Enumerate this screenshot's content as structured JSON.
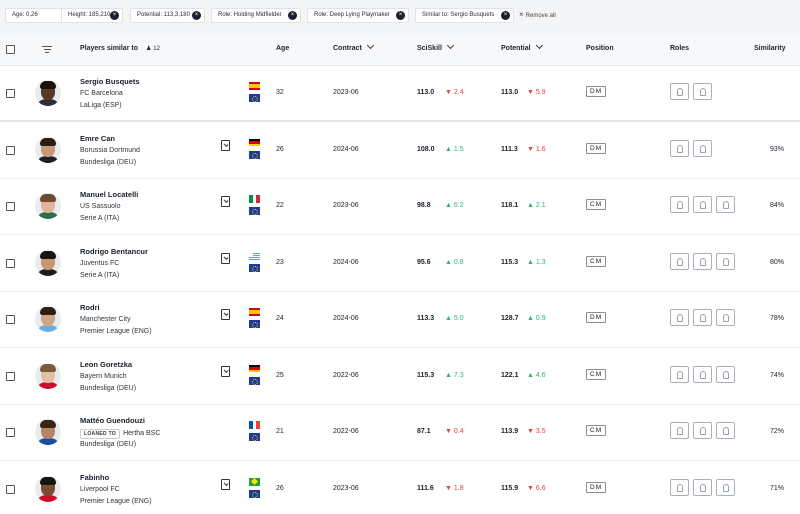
{
  "filters": [
    {
      "label": "Age: 0,26"
    },
    {
      "label": "Height: 185,210"
    },
    {
      "label": "Potential: 113,3,180"
    },
    {
      "label": "Role: Holding Midfielder"
    },
    {
      "label": "Role: Deep Lying Playmaker"
    },
    {
      "label": "Similar to: Sergio Busquets"
    }
  ],
  "remove_all": "Remove all",
  "remove_all_icon": "×",
  "filter_remove_icon": "×",
  "header": {
    "players_label": "Players similar to",
    "players_count": "12",
    "age": "Age",
    "contract": "Contract",
    "sciskill": "SciSkill",
    "potential": "Potential",
    "position": "Position",
    "roles": "Roles",
    "similarity": "Similarity"
  },
  "colors": {
    "up": "#2eb866",
    "down": "#e0453a",
    "eu": "#1d3b9a"
  },
  "players": [
    {
      "name": "Sergio Busquets",
      "club": "FC Barcelona",
      "loan_label": "",
      "league": "LaLiga (ESP)",
      "flag": "spain",
      "age": "32",
      "contract": "2023-06",
      "sciskill": "113.0",
      "sciskill_delta": "2.4",
      "sciskill_trend": "down",
      "potential": "113.0",
      "potential_delta": "5.9",
      "potential_trend": "down",
      "position": "DM",
      "roles": 2,
      "similarity": "",
      "bookmark": false,
      "skin": "#5a3a26",
      "hair": "#1b120d",
      "shirt": "#2b2e3a"
    },
    {
      "name": "Emre Can",
      "club": "Borussia Dortmund",
      "loan_label": "",
      "league": "Bundesliga (DEU)",
      "flag": "germany",
      "age": "26",
      "contract": "2024-06",
      "sciskill": "108.0",
      "sciskill_delta": "1.5",
      "sciskill_trend": "up",
      "potential": "111.3",
      "potential_delta": "1.6",
      "potential_trend": "down",
      "position": "DM",
      "roles": 2,
      "similarity": "93%",
      "bookmark": true,
      "skin": "#c79a7a",
      "hair": "#2a1d15",
      "shirt": "#1e1f24"
    },
    {
      "name": "Manuel Locatelli",
      "club": "US Sassuolo",
      "loan_label": "",
      "league": "Serie A (ITA)",
      "flag": "italy",
      "age": "22",
      "contract": "2023-06",
      "sciskill": "98.8",
      "sciskill_delta": "6.2",
      "sciskill_trend": "up",
      "potential": "118.1",
      "potential_delta": "2.1",
      "potential_trend": "up",
      "position": "CM",
      "roles": 3,
      "similarity": "84%",
      "bookmark": true,
      "skin": "#e0b59a",
      "hair": "#6b4a31",
      "shirt": "#2c6e49"
    },
    {
      "name": "Rodrigo Bentancur",
      "club": "Juventus FC",
      "loan_label": "",
      "league": "Serie A (ITA)",
      "flag": "uruguay",
      "age": "23",
      "contract": "2024-06",
      "sciskill": "95.6",
      "sciskill_delta": "0.8",
      "sciskill_trend": "up",
      "potential": "115.3",
      "potential_delta": "1.3",
      "potential_trend": "up",
      "position": "CM",
      "roles": 3,
      "similarity": "80%",
      "bookmark": true,
      "skin": "#c99573",
      "hair": "#1a1410",
      "shirt": "#1c1c1c"
    },
    {
      "name": "Rodri",
      "club": "Manchester City",
      "loan_label": "",
      "league": "Premier League (ENG)",
      "flag": "spain",
      "age": "24",
      "contract": "2024-06",
      "sciskill": "113.3",
      "sciskill_delta": "5.0",
      "sciskill_trend": "up",
      "potential": "128.7",
      "potential_delta": "0.9",
      "potential_trend": "up",
      "position": "DM",
      "roles": 3,
      "similarity": "78%",
      "bookmark": true,
      "skin": "#d4a486",
      "hair": "#2b1f17",
      "shirt": "#6cabdd"
    },
    {
      "name": "Leon Goretzka",
      "club": "Bayern Munich",
      "loan_label": "",
      "league": "Bundesliga (DEU)",
      "flag": "germany",
      "age": "25",
      "contract": "2022-06",
      "sciskill": "115.3",
      "sciskill_delta": "7.3",
      "sciskill_trend": "up",
      "potential": "122.1",
      "potential_delta": "4.6",
      "potential_trend": "up",
      "position": "CM",
      "roles": 3,
      "similarity": "74%",
      "bookmark": true,
      "skin": "#e6bfa3",
      "hair": "#7a5a3a",
      "shirt": "#c8102e"
    },
    {
      "name": "Mattéo Guendouzi",
      "club": "Hertha BSC",
      "loan_label": "LOANED TO",
      "league": "Bundesliga (DEU)",
      "flag": "france",
      "age": "21",
      "contract": "2022-06",
      "sciskill": "87.1",
      "sciskill_delta": "0.4",
      "sciskill_trend": "down",
      "potential": "113.9",
      "potential_delta": "3.5",
      "potential_trend": "down",
      "position": "CM",
      "roles": 3,
      "similarity": "72%",
      "bookmark": false,
      "skin": "#b98264",
      "hair": "#3a2416",
      "shirt": "#1b4b9a"
    },
    {
      "name": "Fabinho",
      "club": "Liverpool FC",
      "loan_label": "",
      "league": "Premier League (ENG)",
      "flag": "brazil",
      "age": "26",
      "contract": "2023-06",
      "sciskill": "111.6",
      "sciskill_delta": "1.8",
      "sciskill_trend": "down",
      "potential": "115.9",
      "potential_delta": "6.6",
      "potential_trend": "down",
      "position": "DM",
      "roles": 3,
      "similarity": "71%",
      "bookmark": true,
      "skin": "#7a4e33",
      "hair": "#1a120c",
      "shirt": "#c8102e"
    }
  ]
}
